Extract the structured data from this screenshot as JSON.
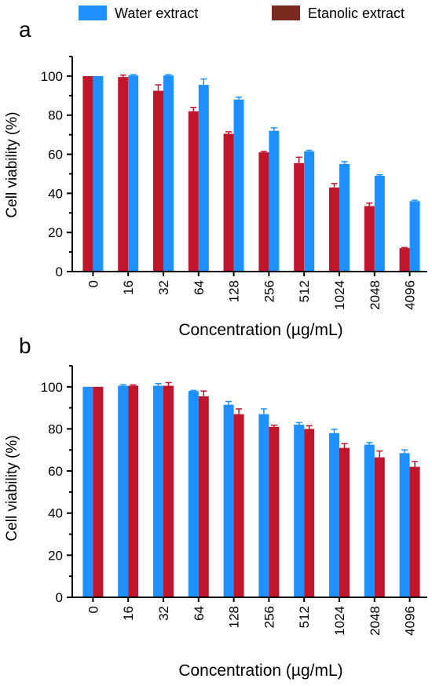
{
  "legend": {
    "water_label": "Water extract",
    "ethanol_label": "Etanolic extract",
    "water_color": "#1E90FF",
    "ethanol_color": "#C0152A",
    "ethanol_swatch_color": "#7B2A20"
  },
  "chart_data": [
    {
      "type": "bar",
      "panel_label": "a",
      "categories": [
        "0",
        "16",
        "32",
        "64",
        "128",
        "256",
        "512",
        "1024",
        "2048",
        "4096"
      ],
      "series": [
        {
          "name": "Etanolic extract",
          "color": "#C0152A",
          "values": [
            100,
            99.5,
            92.5,
            82,
            70.5,
            61,
            55.5,
            43,
            33.5,
            12
          ],
          "errors": [
            0,
            1,
            3,
            2,
            1,
            0.5,
            3,
            2,
            1.5,
            0.3
          ]
        },
        {
          "name": "Water extract",
          "color": "#1E90FF",
          "values": [
            100,
            100.3,
            100.3,
            95.5,
            88,
            72,
            61.5,
            55,
            49,
            36
          ],
          "errors": [
            0,
            0.4,
            0.4,
            3,
            1.2,
            1.5,
            0.5,
            1.2,
            0.5,
            0.5
          ]
        }
      ],
      "xlabel": "Concentration (µg/mL)",
      "ylabel": "Cell viability (%)",
      "ylim": [
        0,
        110
      ],
      "yticks": [
        0,
        20,
        40,
        60,
        80,
        100
      ],
      "grid": false
    },
    {
      "type": "bar",
      "panel_label": "b",
      "categories": [
        "0",
        "16",
        "32",
        "64",
        "128",
        "256",
        "512",
        "1024",
        "2048",
        "4096"
      ],
      "series": [
        {
          "name": "Water extract",
          "color": "#1E90FF",
          "values": [
            100,
            100.5,
            100.5,
            98,
            91.5,
            87,
            82,
            78,
            72.5,
            68.5
          ],
          "errors": [
            0,
            0.5,
            1,
            0.3,
            1.5,
            2.5,
            1,
            1.8,
            1,
            1.5
          ]
        },
        {
          "name": "Etanolic extract",
          "color": "#C0152A",
          "values": [
            100,
            100.5,
            100.5,
            95.5,
            87,
            81,
            80,
            71,
            66.5,
            62
          ],
          "errors": [
            0,
            0.4,
            1.5,
            2.5,
            2.5,
            0.8,
            1.5,
            2,
            3,
            2.5
          ]
        }
      ],
      "xlabel": "Concentration (µg/mL)",
      "ylabel": "Cell viability (%)",
      "ylim": [
        0,
        110
      ],
      "yticks": [
        0,
        20,
        40,
        60,
        80,
        100
      ],
      "grid": false
    }
  ]
}
